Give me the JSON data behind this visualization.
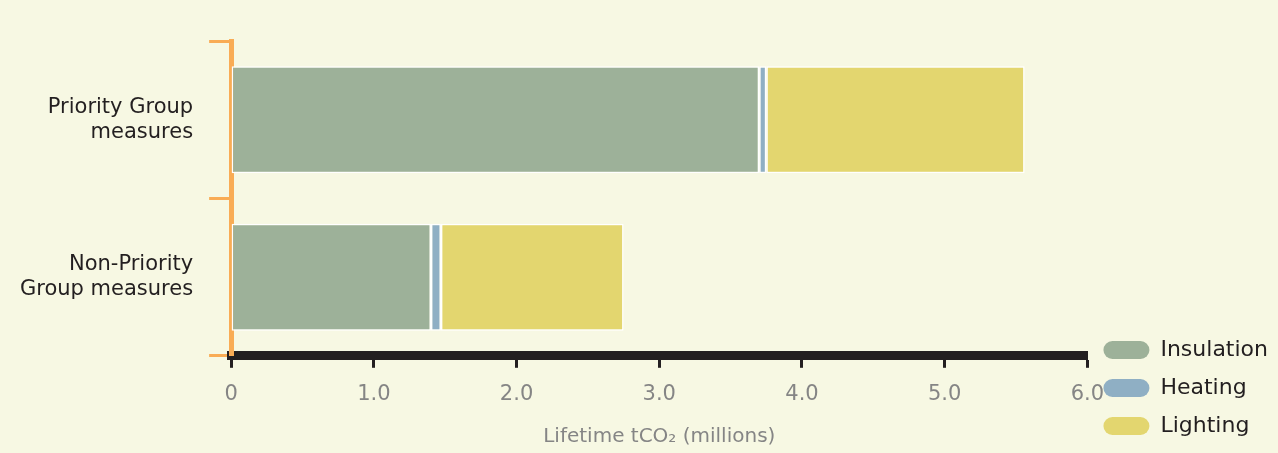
{
  "chart_data": {
    "type": "bar",
    "orientation": "horizontal",
    "stacked": true,
    "xlabel": "Lifetime tCO₂ (millions)",
    "categories": [
      "Priority Group measures",
      "Non-Priority Group measures"
    ],
    "series": [
      {
        "name": "Insulation",
        "color": "#9db199",
        "values": [
          3.7,
          1.4
        ]
      },
      {
        "name": "Heating",
        "color": "#8fafc4",
        "values": [
          0.05,
          0.07
        ]
      },
      {
        "name": "Lighting",
        "color": "#e3d66f",
        "values": [
          1.81,
          1.28
        ]
      }
    ],
    "xlim": [
      0,
      6
    ],
    "xticks": [
      0,
      {
        "value": 1,
        "label": "1.0"
      },
      {
        "value": 2,
        "label": "2.0"
      },
      {
        "value": 3,
        "label": "3.0"
      },
      {
        "value": 4,
        "label": "4.0"
      },
      {
        "value": 5,
        "label": "5.0"
      },
      {
        "value": 6,
        "label": "6.0"
      }
    ],
    "grid": false,
    "legend": "right"
  }
}
